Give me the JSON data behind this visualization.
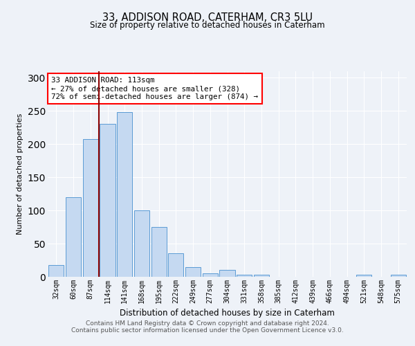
{
  "title1": "33, ADDISON ROAD, CATERHAM, CR3 5LU",
  "title2": "Size of property relative to detached houses in Caterham",
  "xlabel": "Distribution of detached houses by size in Caterham",
  "ylabel": "Number of detached properties",
  "categories": [
    "32sqm",
    "60sqm",
    "87sqm",
    "114sqm",
    "141sqm",
    "168sqm",
    "195sqm",
    "222sqm",
    "249sqm",
    "277sqm",
    "304sqm",
    "331sqm",
    "358sqm",
    "385sqm",
    "412sqm",
    "439sqm",
    "466sqm",
    "494sqm",
    "521sqm",
    "548sqm",
    "575sqm"
  ],
  "values": [
    18,
    120,
    207,
    230,
    248,
    100,
    75,
    35,
    15,
    5,
    10,
    3,
    3,
    0,
    0,
    0,
    0,
    0,
    3,
    0,
    3
  ],
  "bar_color": "#c5d9f1",
  "bar_edge_color": "#5b9bd5",
  "annotation_text": "33 ADDISON ROAD: 113sqm\n← 27% of detached houses are smaller (328)\n72% of semi-detached houses are larger (874) →",
  "annotation_box_color": "white",
  "annotation_box_edge_color": "red",
  "vline_color": "#8b0000",
  "ylim": [
    0,
    310
  ],
  "yticks": [
    0,
    50,
    100,
    150,
    200,
    250,
    300
  ],
  "footer1": "Contains HM Land Registry data © Crown copyright and database right 2024.",
  "footer2": "Contains public sector information licensed under the Open Government Licence v3.0.",
  "bg_color": "#eef2f8",
  "plot_bg_color": "#eef2f8"
}
